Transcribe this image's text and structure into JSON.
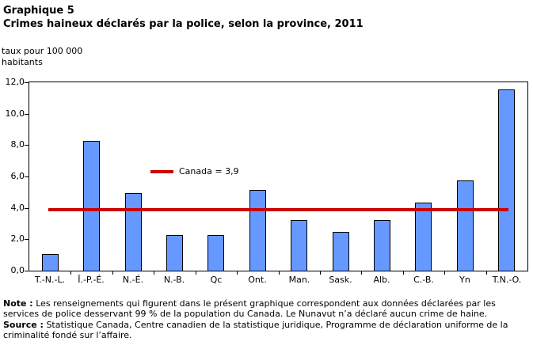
{
  "chart_data": {
    "type": "bar",
    "suptitle": "Graphique 5",
    "title": "Crimes haineux déclarés par la police, selon la province, 2011",
    "ylabel_lines": [
      "taux pour 100 000",
      "habitants"
    ],
    "xlabel": "",
    "categories": [
      "T.-N.-L.",
      "Î.-P.-É.",
      "N.-É.",
      "N.-B.",
      "Qc",
      "Ont.",
      "Man.",
      "Sask.",
      "Alb.",
      "C.-B.",
      "Yn",
      "T.N.-O."
    ],
    "values": [
      1.0,
      8.2,
      4.9,
      2.2,
      2.2,
      5.1,
      3.2,
      2.4,
      3.2,
      4.3,
      5.7,
      11.5
    ],
    "ylim": [
      0,
      12
    ],
    "ytick_step": 2,
    "ytick_labels": [
      "0,0",
      "2,0",
      "4,0",
      "6,0",
      "8,0",
      "10,0",
      "12,0"
    ],
    "grid": "off",
    "bar_color": "#6699ff",
    "bar_border_color": "#000000",
    "reference_line": {
      "value": 3.9,
      "label": "Canada = 3,9",
      "color": "#cc0000"
    },
    "legend_position": "inside-upper-middle-left"
  },
  "notes": {
    "note_label": "Note :",
    "note_text": " Les renseignements qui figurent dans le présent graphique correspondent aux données déclarées par les services de police desservant 99 % de la population du Canada. Le Nunavut n’a déclaré aucun crime de haine.",
    "source_label": "Source :",
    "source_text": " Statistique Canada, Centre canadien de la statistique juridique, Programme de déclaration uniforme de la criminalité fondé sur l’affaire."
  }
}
